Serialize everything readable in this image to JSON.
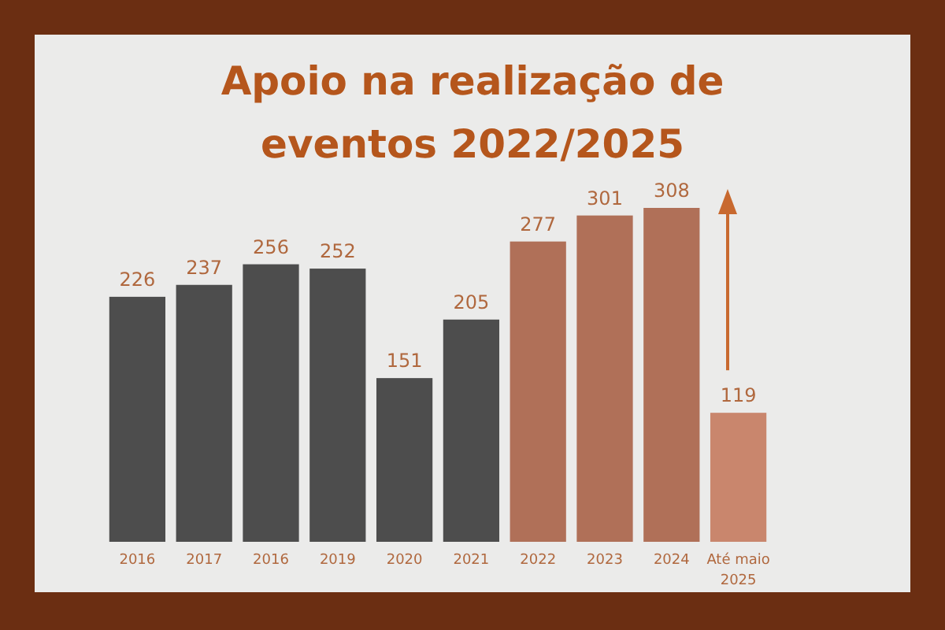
{
  "chart_data": {
    "type": "bar",
    "title": "Apoio na realização de eventos 2022/2025",
    "categories": [
      "2016",
      "2017",
      "2016",
      "2019",
      "2020",
      "2021",
      "2022",
      "2023",
      "2024",
      "Até maio 2025"
    ],
    "values": [
      226,
      237,
      256,
      252,
      151,
      205,
      277,
      301,
      308,
      119
    ],
    "colors": [
      "#4d4d4d",
      "#4d4d4d",
      "#4d4d4d",
      "#4d4d4d",
      "#4d4d4d",
      "#4d4d4d",
      "#b07058",
      "#b07058",
      "#b07058",
      "#c9866d"
    ],
    "data_labels": true
  }
}
